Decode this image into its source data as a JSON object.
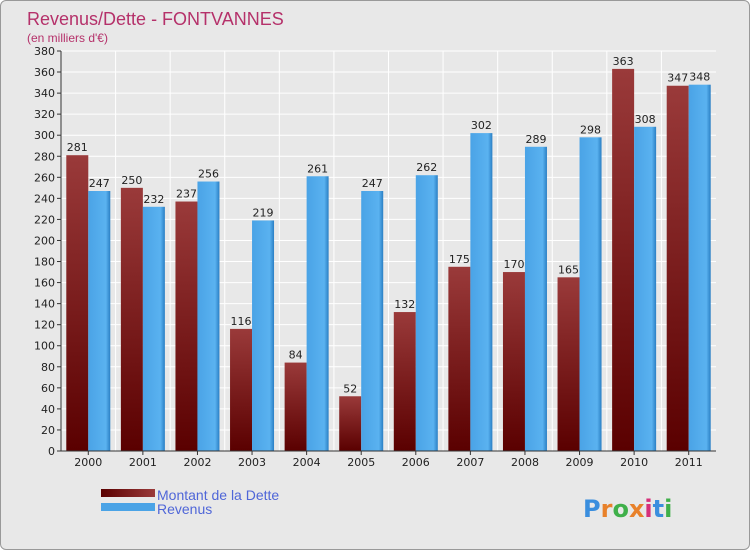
{
  "chart_data": {
    "type": "bar",
    "title": "Revenus/Dette - FONTVANNES",
    "subtitle": "(en milliers d'€)",
    "categories": [
      "2000",
      "2001",
      "2002",
      "2003",
      "2004",
      "2005",
      "2006",
      "2007",
      "2008",
      "2009",
      "2010",
      "2011"
    ],
    "series": [
      {
        "name": "Montant de la Dette",
        "color": "#7a1a1a",
        "values": [
          281,
          250,
          237,
          116,
          84,
          52,
          132,
          175,
          170,
          165,
          363,
          347
        ]
      },
      {
        "name": "Revenus",
        "color": "#4aa3e6",
        "values": [
          247,
          232,
          256,
          219,
          261,
          247,
          262,
          302,
          289,
          298,
          308,
          348
        ]
      }
    ],
    "ylim": [
      0,
      380
    ],
    "ytick_step": 20,
    "grid": true,
    "legend_position": "bottom-left"
  },
  "logo": {
    "text": "Proxiti",
    "letters": [
      "P",
      "r",
      "o",
      "x",
      "i",
      "t",
      "i"
    ],
    "colors": [
      "#3a8ede",
      "#e8812a",
      "#3fb04a",
      "#e8812a",
      "#d62f7a",
      "#3a8ede",
      "#3fb04a"
    ]
  }
}
